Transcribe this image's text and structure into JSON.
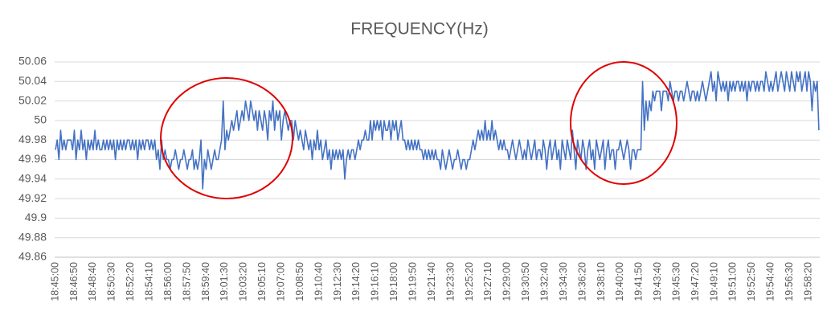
{
  "chart_data": {
    "type": "line",
    "title": "FREQUENCY(Hz)",
    "categories": [
      "18:45:00",
      null,
      null,
      null,
      null,
      null,
      null,
      null,
      null,
      null,
      null,
      "18:46:50",
      null,
      null,
      null,
      null,
      null,
      null,
      null,
      null,
      null,
      null,
      "18:48:40",
      null,
      null,
      null,
      null,
      null,
      null,
      null,
      null,
      null,
      null,
      "18:50:30",
      null,
      null,
      null,
      null,
      null,
      null,
      null,
      null,
      null,
      null,
      "18:52:20",
      null,
      null,
      null,
      null,
      null,
      null,
      null,
      null,
      null,
      null,
      "18:54:10",
      null,
      null,
      null,
      null,
      null,
      null,
      null,
      null,
      null,
      null,
      "18:56:00",
      null,
      null,
      null,
      null,
      null,
      null,
      null,
      null,
      null,
      null,
      "18:57:50",
      null,
      null,
      null,
      null,
      null,
      null,
      null,
      null,
      null,
      null,
      "18:59:40",
      null,
      null,
      null,
      null,
      null,
      null,
      null,
      null,
      null,
      null,
      "19:01:30",
      null,
      null,
      null,
      null,
      null,
      null,
      null,
      null,
      null,
      null,
      "19:03:20",
      null,
      null,
      null,
      null,
      null,
      null,
      null,
      null,
      null,
      null,
      "19:05:10",
      null,
      null,
      null,
      null,
      null,
      null,
      null,
      null,
      null,
      null,
      "19:07:00",
      null,
      null,
      null,
      null,
      null,
      null,
      null,
      null,
      null,
      null,
      "19:08:50",
      null,
      null,
      null,
      null,
      null,
      null,
      null,
      null,
      null,
      null,
      "19:10:40",
      null,
      null,
      null,
      null,
      null,
      null,
      null,
      null,
      null,
      null,
      "19:12:30",
      null,
      null,
      null,
      null,
      null,
      null,
      null,
      null,
      null,
      null,
      "19:14:20",
      null,
      null,
      null,
      null,
      null,
      null,
      null,
      null,
      null,
      null,
      "19:16:10",
      null,
      null,
      null,
      null,
      null,
      null,
      null,
      null,
      null,
      null,
      "19:18:00",
      null,
      null,
      null,
      null,
      null,
      null,
      null,
      null,
      null,
      null,
      "19:19:50",
      null,
      null,
      null,
      null,
      null,
      null,
      null,
      null,
      null,
      null,
      "19:21:40",
      null,
      null,
      null,
      null,
      null,
      null,
      null,
      null,
      null,
      null,
      "19:23:30",
      null,
      null,
      null,
      null,
      null,
      null,
      null,
      null,
      null,
      null,
      "19:25:20",
      null,
      null,
      null,
      null,
      null,
      null,
      null,
      null,
      null,
      null,
      "19:27:10",
      null,
      null,
      null,
      null,
      null,
      null,
      null,
      null,
      null,
      null,
      "19:29:00",
      null,
      null,
      null,
      null,
      null,
      null,
      null,
      null,
      null,
      null,
      "19:30:50",
      null,
      null,
      null,
      null,
      null,
      null,
      null,
      null,
      null,
      null,
      "19:32:40",
      null,
      null,
      null,
      null,
      null,
      null,
      null,
      null,
      null,
      null,
      "19:34:30",
      null,
      null,
      null,
      null,
      null,
      null,
      null,
      null,
      null,
      null,
      "19:36:20",
      null,
      null,
      null,
      null,
      null,
      null,
      null,
      null,
      null,
      null,
      "19:38:10",
      null,
      null,
      null,
      null,
      null,
      null,
      null,
      null,
      null,
      null,
      "19:40:00",
      null,
      null,
      null,
      null,
      null,
      null,
      null,
      null,
      null,
      null,
      "19:41:50",
      null,
      null,
      null,
      null,
      null,
      null,
      null,
      null,
      null,
      null,
      "19:43:40",
      null,
      null,
      null,
      null,
      null,
      null,
      null,
      null,
      null,
      null,
      "19:45:30",
      null,
      null,
      null,
      null,
      null,
      null,
      null,
      null,
      null,
      null,
      "19:47:20",
      null,
      null,
      null,
      null,
      null,
      null,
      null,
      null,
      null,
      null,
      "19:49:10",
      null,
      null,
      null,
      null,
      null,
      null,
      null,
      null,
      null,
      null,
      "19:51:00",
      null,
      null,
      null,
      null,
      null,
      null,
      null,
      null,
      null,
      null,
      "19:52:50",
      null,
      null,
      null,
      null,
      null,
      null,
      null,
      null,
      null,
      null,
      "19:54:40",
      null,
      null,
      null,
      null,
      null,
      null,
      null,
      null,
      null,
      null,
      "19:56:30",
      null,
      null,
      null,
      null,
      null,
      null,
      null,
      null,
      null,
      null,
      "19:58:20",
      null,
      null,
      null,
      null,
      null,
      null
    ],
    "values": [
      49.97,
      49.98,
      49.96,
      49.99,
      49.97,
      49.98,
      49.97,
      49.98,
      49.98,
      49.98,
      49.97,
      49.99,
      49.96,
      49.98,
      49.97,
      49.99,
      49.97,
      49.98,
      49.96,
      49.98,
      49.97,
      49.98,
      49.97,
      49.99,
      49.97,
      49.98,
      49.97,
      49.97,
      49.98,
      49.97,
      49.98,
      49.97,
      49.98,
      49.97,
      49.98,
      49.96,
      49.98,
      49.97,
      49.98,
      49.97,
      49.98,
      49.97,
      49.98,
      49.98,
      49.97,
      49.98,
      49.97,
      49.98,
      49.96,
      49.98,
      49.97,
      49.98,
      49.97,
      49.98,
      49.98,
      49.97,
      49.98,
      49.97,
      49.98,
      49.96,
      49.97,
      49.95,
      49.98,
      49.96,
      49.97,
      49.96,
      49.96,
      49.95,
      49.96,
      49.96,
      49.97,
      49.96,
      49.95,
      49.96,
      49.96,
      49.97,
      49.96,
      49.95,
      49.96,
      49.96,
      49.97,
      49.95,
      49.96,
      49.95,
      49.96,
      49.98,
      49.93,
      49.96,
      49.95,
      49.97,
      49.96,
      49.95,
      49.96,
      49.97,
      49.96,
      49.96,
      49.97,
      49.98,
      50.02,
      49.97,
      49.99,
      49.98,
      49.99,
      50.0,
      49.99,
      50.0,
      50.01,
      49.99,
      50.0,
      50.01,
      50.0,
      50.02,
      50.01,
      50.0,
      50.02,
      50.01,
      50.0,
      50.01,
      49.99,
      50.01,
      50.0,
      49.99,
      50.01,
      50.0,
      49.98,
      50.01,
      50.0,
      50.02,
      49.99,
      50.01,
      50.0,
      50.01,
      49.98,
      50.0,
      50.01,
      50.0,
      49.99,
      50.0,
      50.0,
      49.98,
      50.0,
      49.99,
      49.98,
      49.99,
      49.98,
      49.97,
      49.99,
      49.98,
      49.97,
      49.98,
      49.96,
      49.98,
      49.97,
      49.99,
      49.97,
      49.98,
      49.96,
      49.97,
      49.98,
      49.96,
      49.97,
      49.95,
      49.97,
      49.96,
      49.97,
      49.96,
      49.97,
      49.96,
      49.97,
      49.94,
      49.96,
      49.97,
      49.96,
      49.97,
      49.97,
      49.96,
      49.97,
      49.98,
      49.97,
      49.98,
      49.98,
      49.99,
      49.98,
      49.98,
      50.0,
      49.98,
      50.0,
      49.99,
      50.0,
      49.99,
      50.0,
      49.98,
      50.0,
      49.99,
      49.99,
      50.0,
      49.98,
      50.0,
      49.99,
      50.0,
      49.98,
      49.99,
      50.0,
      49.98,
      49.98,
      49.97,
      49.98,
      49.97,
      49.98,
      49.97,
      49.98,
      49.97,
      49.98,
      49.97,
      49.97,
      49.96,
      49.97,
      49.96,
      49.97,
      49.96,
      49.97,
      49.96,
      49.97,
      49.96,
      49.96,
      49.95,
      49.97,
      49.96,
      49.95,
      49.96,
      49.97,
      49.96,
      49.95,
      49.96,
      49.96,
      49.97,
      49.96,
      49.95,
      49.96,
      49.96,
      49.95,
      49.96,
      49.96,
      49.97,
      49.98,
      49.97,
      49.98,
      49.99,
      49.98,
      49.99,
      49.98,
      50.0,
      49.98,
      49.99,
      49.98,
      50.0,
      49.98,
      49.99,
      49.98,
      49.97,
      49.98,
      49.97,
      49.98,
      49.97,
      49.97,
      49.96,
      49.97,
      49.98,
      49.97,
      49.96,
      49.97,
      49.98,
      49.97,
      49.96,
      49.97,
      49.96,
      49.98,
      49.97,
      49.96,
      49.97,
      49.98,
      49.96,
      49.97,
      49.97,
      49.96,
      49.98,
      49.97,
      49.95,
      49.97,
      49.98,
      49.96,
      49.97,
      49.98,
      49.96,
      49.97,
      49.95,
      49.98,
      49.97,
      49.96,
      49.98,
      49.97,
      49.96,
      49.99,
      49.97,
      49.95,
      49.98,
      49.97,
      49.96,
      49.98,
      49.97,
      49.95,
      49.97,
      49.98,
      49.96,
      49.97,
      49.95,
      49.98,
      49.97,
      49.96,
      49.97,
      49.98,
      49.95,
      49.97,
      49.98,
      49.96,
      49.97,
      49.97,
      49.95,
      49.97,
      49.97,
      49.98,
      49.97,
      49.96,
      49.97,
      49.98,
      49.97,
      49.95,
      49.97,
      49.97,
      49.96,
      49.97,
      49.97,
      49.97,
      50.04,
      49.99,
      50.02,
      50.0,
      50.02,
      50.01,
      50.03,
      50.02,
      50.03,
      50.03,
      50.03,
      50.01,
      50.03,
      50.03,
      50.03,
      50.02,
      50.04,
      50.03,
      50.02,
      50.03,
      50.03,
      50.02,
      50.03,
      50.03,
      50.02,
      50.03,
      50.04,
      50.03,
      50.02,
      50.03,
      50.03,
      50.02,
      50.03,
      50.02,
      50.03,
      50.04,
      50.03,
      50.02,
      50.03,
      50.04,
      50.05,
      50.03,
      50.04,
      50.02,
      50.05,
      50.04,
      50.03,
      50.04,
      50.03,
      50.04,
      50.02,
      50.04,
      50.03,
      50.04,
      50.03,
      50.04,
      50.04,
      50.03,
      50.04,
      50.03,
      50.04,
      50.02,
      50.04,
      50.03,
      50.04,
      50.04,
      50.03,
      50.04,
      50.03,
      50.04,
      50.04,
      50.03,
      50.05,
      50.04,
      50.03,
      50.04,
      50.03,
      50.04,
      50.05,
      50.03,
      50.04,
      50.05,
      50.04,
      50.03,
      50.05,
      50.04,
      50.03,
      50.05,
      50.04,
      50.03,
      50.05,
      50.04,
      50.05,
      50.03,
      50.04,
      50.05,
      50.03,
      50.05,
      50.04,
      50.01,
      50.04,
      50.03,
      50.04,
      49.99
    ],
    "color": "#4472c4",
    "ylim": [
      49.86,
      50.06
    ],
    "yticks": [
      49.86,
      49.88,
      49.9,
      49.92,
      49.94,
      49.96,
      49.98,
      50,
      50.02,
      50.04,
      50.06
    ],
    "grid": true
  }
}
